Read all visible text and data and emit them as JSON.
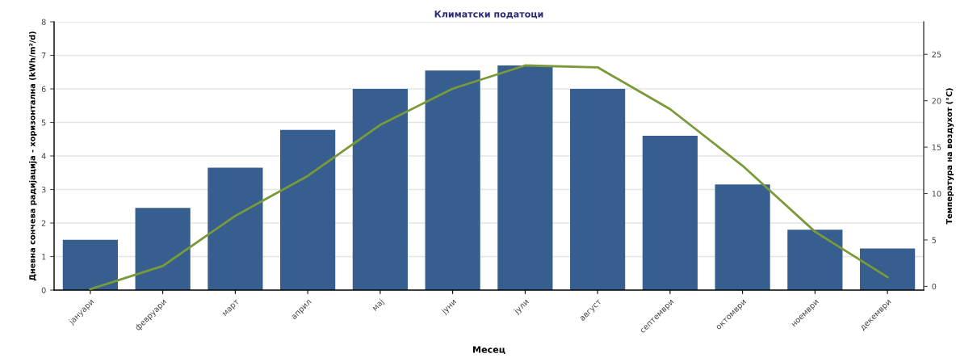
{
  "chart_data": {
    "type": "bar",
    "title": "Климатски податоци",
    "xlabel": "Месец",
    "ylabel": "Дневна сончева радијација - хоризонтална (kWh/m²/d)",
    "y2label": "Температура на воздухот (°C)",
    "categories": [
      "јануари",
      "февруари",
      "март",
      "април",
      "мај",
      "јуни",
      "јули",
      "август",
      "септември",
      "октомври",
      "ноември",
      "декември"
    ],
    "series": [
      {
        "color": "#365f8f",
        "values": [
          1.5,
          2.45,
          3.65,
          4.78,
          6.0,
          6.55,
          6.7,
          6.0,
          4.6,
          3.15,
          1.8,
          1.24
        ]
      },
      {
        "type": "line",
        "axis": "y2",
        "color": "#7a9a3a",
        "values": [
          -0.3,
          2.2,
          7.6,
          11.9,
          17.4,
          21.3,
          23.8,
          23.6,
          19.1,
          13.0,
          5.9,
          1.0
        ]
      }
    ],
    "ylim": [
      0,
      8
    ],
    "yticks": [
      0,
      1,
      2,
      3,
      4,
      5,
      6,
      7,
      8
    ],
    "y2lim": [
      -0.4,
      28.5
    ],
    "y2ticks": [
      0,
      5,
      10,
      15,
      20,
      25
    ],
    "grid": "y",
    "marker": "none",
    "line_style": "solid"
  }
}
